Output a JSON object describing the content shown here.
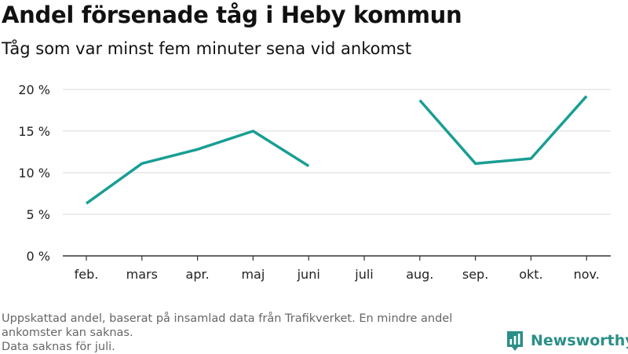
{
  "title": "Andel försenade tåg i Heby kommun",
  "subtitle": "Tåg som var minst fem minuter sena vid ankomst",
  "footer": {
    "line1": "Uppskattad andel, baserat på insamlad data från Trafikverket. En mindre andel ankomster kan saknas.",
    "line2": "Data saknas för juli."
  },
  "brand": {
    "name": "Newsworthy",
    "color": "#2a8f86"
  },
  "colors": {
    "line": "#199e94",
    "grid": "#d9d9d9",
    "axis": "#333333"
  },
  "chart_data": {
    "type": "line",
    "title": "Andel försenade tåg i Heby kommun",
    "subtitle": "Tåg som var minst fem minuter sena vid ankomst",
    "categories": [
      "feb.",
      "mars",
      "apr.",
      "maj",
      "juni",
      "juli",
      "aug.",
      "sep.",
      "okt.",
      "nov."
    ],
    "series": [
      {
        "values": [
          6.3,
          11.1,
          12.8,
          15.0,
          10.8,
          null,
          18.7,
          11.1,
          11.7,
          19.2
        ]
      }
    ],
    "ylim": [
      0,
      20
    ],
    "yticks": [
      0,
      5,
      10,
      15,
      20
    ],
    "ytick_labels": [
      "0 %",
      "5 %",
      "10 %",
      "15 %",
      "20 %"
    ],
    "grid": true,
    "xlabel": "",
    "ylabel": ""
  }
}
